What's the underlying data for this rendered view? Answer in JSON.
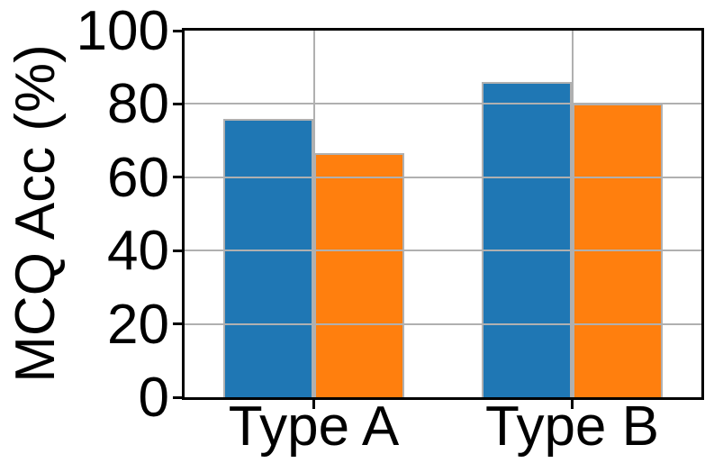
{
  "chart_data": {
    "type": "bar",
    "title": "",
    "xlabel": "",
    "ylabel": "MCQ Acc (%)",
    "categories": [
      "Type A",
      "Type B"
    ],
    "series": [
      {
        "name": "blue",
        "color": "#1f77b4",
        "values": [
          76,
          86
        ]
      },
      {
        "name": "orange",
        "color": "#ff7f0e",
        "values": [
          66.5,
          80
        ]
      }
    ],
    "yticks": [
      0,
      20,
      40,
      60,
      80,
      100
    ],
    "ytick_labels": [
      "0",
      "20",
      "40",
      "60",
      "80",
      "100"
    ],
    "ylim": [
      0,
      100
    ],
    "grid": true,
    "legend": "none",
    "colors": {
      "grid": "#b0b0b0",
      "bar_edge": "#b0b0b0",
      "axis": "#000000",
      "text": "#000000",
      "background": "#ffffff"
    }
  }
}
